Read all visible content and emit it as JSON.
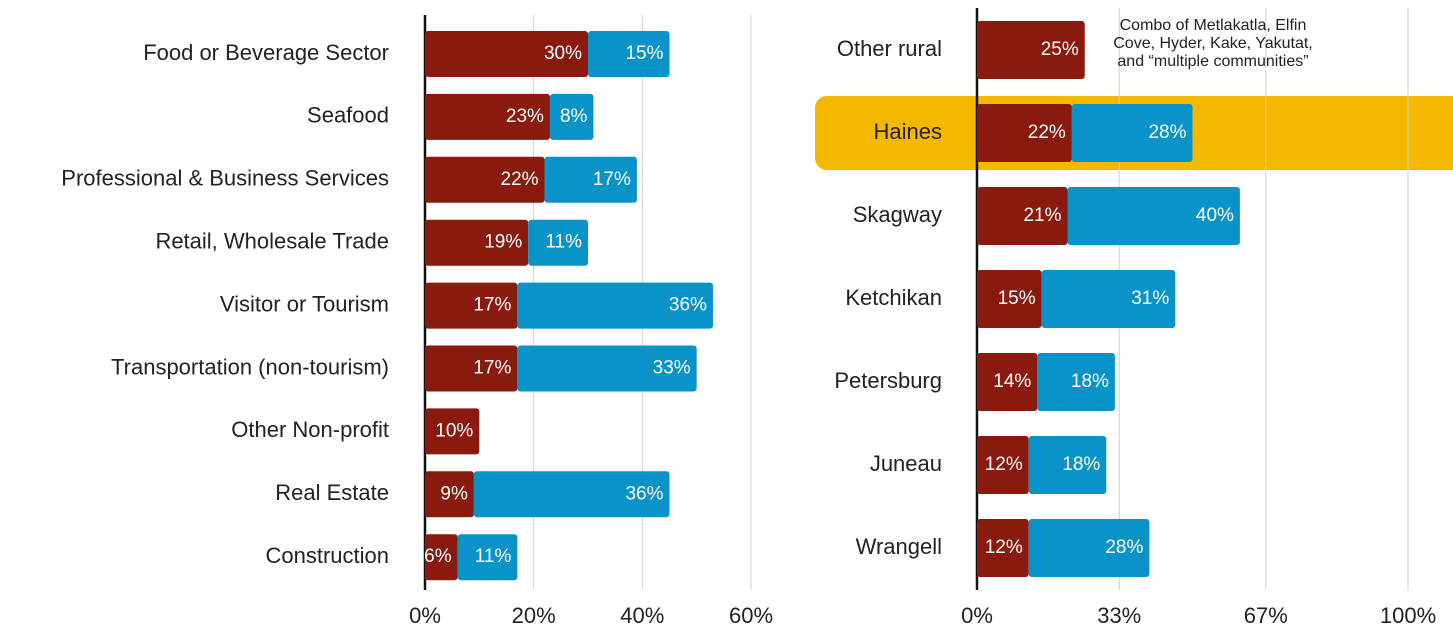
{
  "chart_data": [
    {
      "type": "stacked_barh",
      "categories": [
        "Food or Beverage Sector",
        "Seafood",
        "Professional & Business Services",
        "Retail, Wholesale Trade",
        "Visitor or Tourism",
        "Transportation (non-tourism)",
        "Other Non-profit",
        "Real Estate",
        "Construction"
      ],
      "series": [
        {
          "color": "#8b1a0e",
          "values": [
            30,
            23,
            22,
            19,
            17,
            17,
            10,
            9,
            6
          ],
          "value_labels": [
            "30%",
            "23%",
            "22%",
            "19%",
            "17%",
            "17%",
            "10%",
            "9%",
            "6%"
          ]
        },
        {
          "color": "#0a93c8",
          "values": [
            15,
            8,
            17,
            11,
            36,
            33,
            null,
            36,
            11
          ],
          "value_labels": [
            "15%",
            "8%",
            "17%",
            "11%",
            "36%",
            "33%",
            null,
            "36%",
            "11%"
          ]
        }
      ],
      "xlim": [
        0,
        60
      ],
      "xticks": [
        {
          "value": 0,
          "label": "0%"
        },
        {
          "value": 20,
          "label": "20%"
        },
        {
          "value": 40,
          "label": "40%"
        },
        {
          "value": 60,
          "label": "60%"
        }
      ],
      "grid": true
    },
    {
      "type": "stacked_barh",
      "categories": [
        "Other rural",
        "Haines",
        "Skagway",
        "Ketchikan",
        "Petersburg",
        "Juneau",
        "Wrangell"
      ],
      "series": [
        {
          "color": "#8b1a0e",
          "values": [
            25,
            22,
            21,
            15,
            14,
            12,
            12
          ],
          "value_labels": [
            "25%",
            "22%",
            "21%",
            "15%",
            "14%",
            "12%",
            "12%"
          ]
        },
        {
          "color": "#0a93c8",
          "values": [
            null,
            28,
            40,
            31,
            18,
            18,
            28
          ],
          "value_labels": [
            null,
            "28%",
            "40%",
            "31%",
            "18%",
            "18%",
            "28%"
          ]
        }
      ],
      "xlim": [
        0,
        100
      ],
      "xticks": [
        {
          "value": 0,
          "label": "0%"
        },
        {
          "value": 33,
          "label": "33%"
        },
        {
          "value": 67,
          "label": "67%"
        },
        {
          "value": 100,
          "label": "100%"
        }
      ],
      "grid": true,
      "highlight": {
        "category_index": 1,
        "color": "#f5b800"
      },
      "annotation": [
        "Combo of Metlakatla, Elfin",
        "Cove, Hyder, Kake, Yakutat,",
        "and “multiple communities”"
      ]
    }
  ]
}
